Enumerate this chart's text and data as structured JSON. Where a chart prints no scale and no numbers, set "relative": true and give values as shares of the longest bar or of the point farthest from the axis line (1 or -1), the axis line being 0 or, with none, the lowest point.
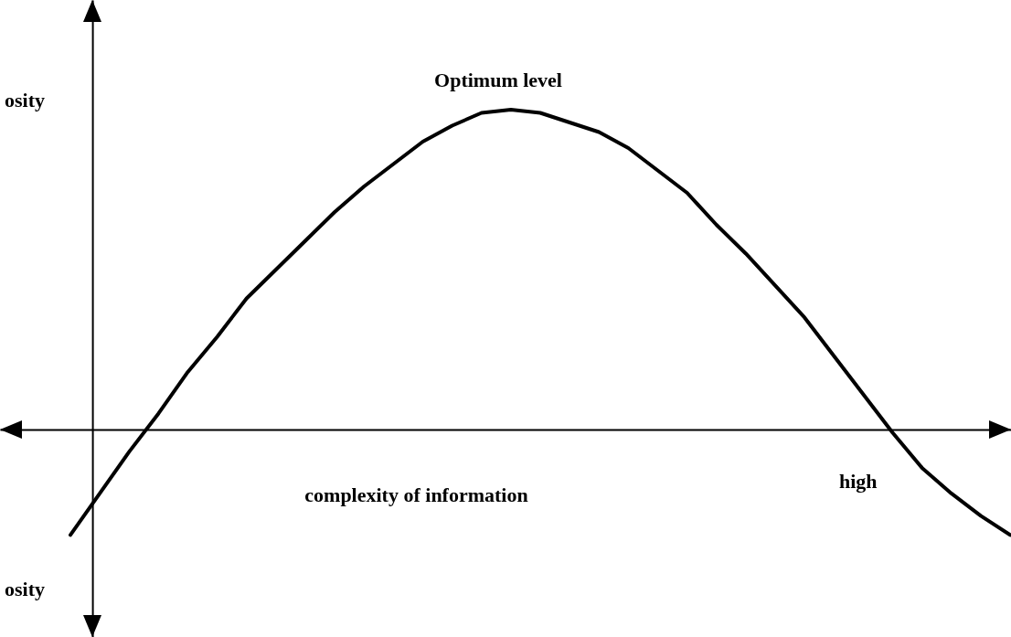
{
  "chart_data": {
    "type": "line",
    "relative": true,
    "xlabel": "complexity of information",
    "categories": [
      null,
      null,
      null,
      null,
      null,
      null,
      null,
      null,
      null,
      null,
      null,
      null,
      null,
      null,
      null,
      null,
      null,
      null,
      null,
      null,
      null,
      null,
      null,
      null,
      null,
      null,
      null,
      null,
      null,
      null,
      null,
      null,
      null
    ],
    "series": [
      {
        "color": "#000000",
        "values": [
          -0.33,
          -0.2,
          -0.07,
          0.05,
          0.18,
          0.29,
          0.41,
          0.5,
          0.59,
          0.68,
          0.76,
          0.83,
          0.9,
          0.95,
          0.99,
          1,
          0.99,
          0.96,
          0.93,
          0.88,
          0.81,
          0.74,
          0.64,
          0.55,
          0.45,
          0.35,
          0.23,
          0.11,
          -0.01,
          -0.12,
          -0.2,
          -0.27,
          -0.33
        ]
      }
    ],
    "annotations": [
      "osity",
      "Optimum level",
      "high",
      "osity"
    ],
    "grid": false,
    "marker": "none",
    "line_style": "solid"
  }
}
